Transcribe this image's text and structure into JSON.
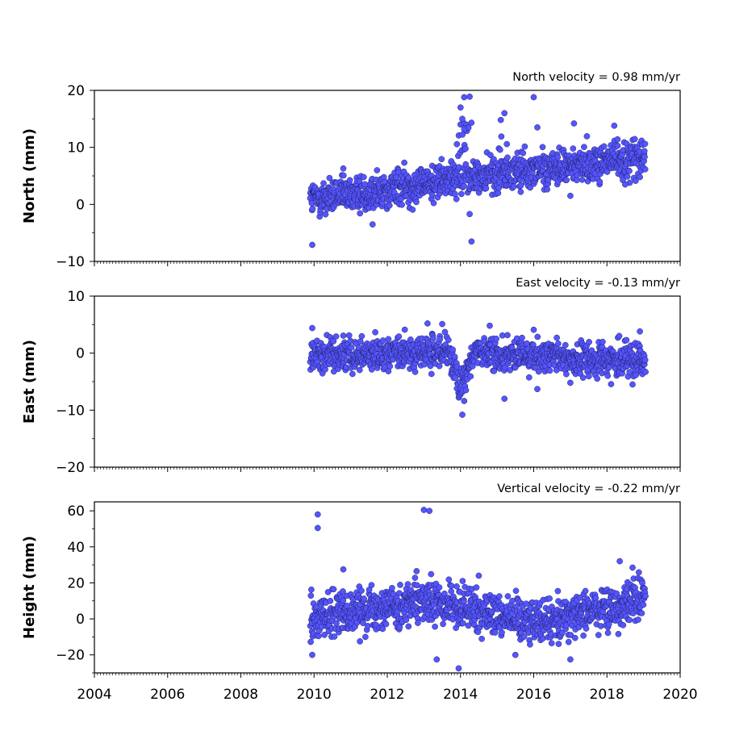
{
  "chart_data": [
    {
      "type": "scatter",
      "ylabel": "North (mm)",
      "velocity_label": "North velocity = 0.98 mm/yr",
      "xlim": [
        2004,
        2020
      ],
      "ylim": [
        -10,
        20
      ],
      "yticks": [
        "20",
        "10",
        "0",
        "−10"
      ],
      "xticks": [
        2004,
        2006,
        2008,
        2010,
        2012,
        2014,
        2016,
        2018,
        2020
      ],
      "x_start": 2009.9,
      "x_end": 2019.05,
      "trend": [
        [
          2009.9,
          0.8
        ],
        [
          2012.0,
          2.6
        ],
        [
          2014.0,
          4.7
        ],
        [
          2016.0,
          6.0
        ],
        [
          2018.0,
          7.6
        ],
        [
          2019.05,
          8.2
        ]
      ],
      "spread": 1.6,
      "outliers": [
        [
          2009.95,
          -7.1
        ],
        [
          2014.3,
          -6.5
        ],
        [
          2014.25,
          -1.7
        ],
        [
          2014.1,
          18.8
        ],
        [
          2014.25,
          18.9
        ],
        [
          2016.0,
          18.8
        ],
        [
          2014.0,
          17.0
        ],
        [
          2014.05,
          15.0
        ],
        [
          2014.1,
          13.2
        ],
        [
          2015.2,
          16.0
        ],
        [
          2015.1,
          14.8
        ],
        [
          2016.1,
          13.5
        ],
        [
          2017.1,
          14.2
        ],
        [
          2018.2,
          13.8
        ],
        [
          2017.0,
          1.5
        ],
        [
          2018.5,
          3.5
        ],
        [
          2011.6,
          -3.5
        ],
        [
          2010.8,
          6.3
        ]
      ],
      "color": "#5555ff"
    },
    {
      "type": "scatter",
      "ylabel": "East (mm)",
      "velocity_label": "East velocity = -0.13 mm/yr",
      "xlim": [
        2004,
        2020
      ],
      "ylim": [
        -20,
        10
      ],
      "yticks": [
        "10",
        "0",
        "−10",
        "−20"
      ],
      "xticks": [
        2004,
        2006,
        2008,
        2010,
        2012,
        2014,
        2016,
        2018,
        2020
      ],
      "x_start": 2009.9,
      "x_end": 2019.05,
      "trend": [
        [
          2009.9,
          -0.2
        ],
        [
          2012.0,
          0.0
        ],
        [
          2013.6,
          0.2
        ],
        [
          2014.0,
          -4.5
        ],
        [
          2014.4,
          0.0
        ],
        [
          2016.0,
          -0.5
        ],
        [
          2018.0,
          -1.4
        ],
        [
          2019.05,
          -0.8
        ]
      ],
      "spread": 1.4,
      "outliers": [
        [
          2014.05,
          -10.8
        ],
        [
          2015.2,
          -8.0
        ],
        [
          2013.5,
          5.1
        ],
        [
          2013.1,
          5.2
        ],
        [
          2014.8,
          4.8
        ],
        [
          2016.0,
          4.1
        ],
        [
          2009.95,
          4.4
        ],
        [
          2018.9,
          3.8
        ],
        [
          2017.0,
          -5.2
        ],
        [
          2018.7,
          -5.5
        ],
        [
          2016.1,
          -6.3
        ],
        [
          2014.1,
          -8.4
        ]
      ],
      "color": "#5555ff"
    },
    {
      "type": "scatter",
      "ylabel": "Height (mm)",
      "velocity_label": "Vertical velocity = -0.22 mm/yr",
      "xlim": [
        2004,
        2020
      ],
      "ylim": [
        -30,
        65
      ],
      "yticks": [
        "60",
        "40",
        "20",
        "0",
        "−20"
      ],
      "xticks": [
        2004,
        2006,
        2008,
        2010,
        2012,
        2014,
        2016,
        2018,
        2020
      ],
      "x_start": 2009.9,
      "x_end": 2019.05,
      "trend": [
        [
          2009.9,
          0.0
        ],
        [
          2011.0,
          5.0
        ],
        [
          2013.0,
          9.0
        ],
        [
          2015.0,
          3.0
        ],
        [
          2016.0,
          -1.0
        ],
        [
          2017.0,
          2.0
        ],
        [
          2018.0,
          6.0
        ],
        [
          2019.05,
          12.0
        ]
      ],
      "spread": 6.0,
      "outliers": [
        [
          2010.1,
          58.0
        ],
        [
          2010.1,
          50.5
        ],
        [
          2013.0,
          60.5
        ],
        [
          2013.15,
          60.0
        ],
        [
          2013.95,
          -27.5
        ],
        [
          2013.35,
          -22.5
        ],
        [
          2017.0,
          -22.5
        ],
        [
          2015.5,
          -20.0
        ],
        [
          2018.35,
          32.0
        ],
        [
          2018.7,
          28.5
        ],
        [
          2009.95,
          -20.0
        ],
        [
          2010.8,
          27.5
        ],
        [
          2012.8,
          26.5
        ],
        [
          2014.5,
          24.0
        ]
      ],
      "color": "#5555ff"
    }
  ]
}
